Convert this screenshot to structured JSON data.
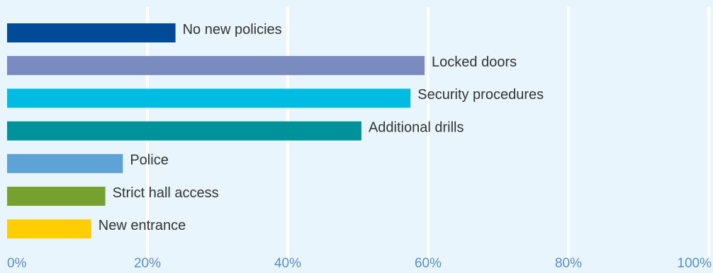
{
  "chart_data": {
    "type": "bar",
    "orientation": "horizontal",
    "categories": [
      "No new policies",
      "Locked doors",
      "Security procedures",
      "Additional drills",
      "Police",
      "Strict hall access",
      "New entrance"
    ],
    "values": [
      24,
      59.5,
      57.5,
      50.5,
      16.5,
      14,
      12
    ],
    "colors": [
      "#004a97",
      "#7a8bc0",
      "#00bce3",
      "#00929a",
      "#5da3d6",
      "#76a12f",
      "#ffce00"
    ],
    "xlim": [
      0,
      100
    ],
    "x_ticks": [
      "0%",
      "20%",
      "40%",
      "60%",
      "80%",
      "100%"
    ],
    "grid": true,
    "title": "",
    "xlabel": "",
    "ylabel": ""
  },
  "style": {
    "background": "#e9f5fc",
    "gridline": "#ffffff",
    "label_color": "#333333",
    "tick_color": "#5a8ebf"
  }
}
